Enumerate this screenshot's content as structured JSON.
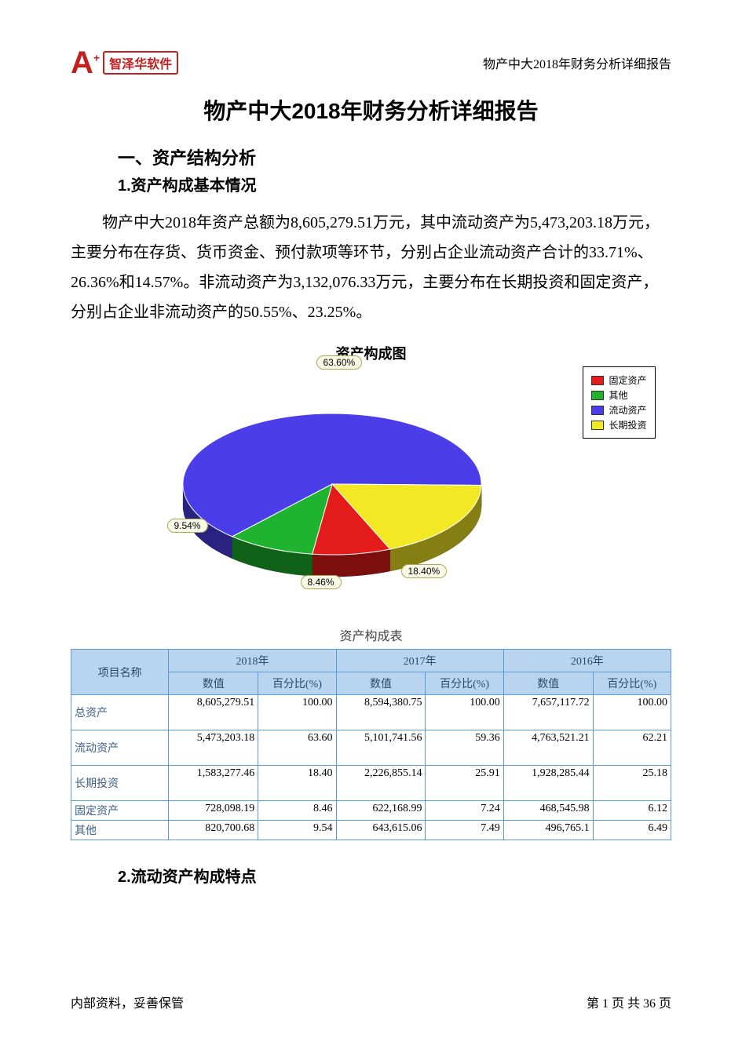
{
  "header": {
    "logo_text": "智泽华软件",
    "right_text": "物产中大2018年财务分析详细报告"
  },
  "title": "物产中大2018年财务分析详细报告",
  "section1": {
    "h1": "一、资产结构分析",
    "h2_1": "1.资产构成基本情况",
    "paragraph": "物产中大2018年资产总额为8,605,279.51万元，其中流动资产为5,473,203.18万元，主要分布在存货、货币资金、预付款项等环节，分别占企业流动资产合计的33.71%、26.36%和14.57%。非流动资产为3,132,076.33万元，主要分布在长期投资和固定资产，分别占企业非流动资产的50.55%、23.25%。",
    "h2_2": "2.流动资产构成特点"
  },
  "chart": {
    "type": "pie3d",
    "title": "资产构成图",
    "background_color": "#ffffff",
    "slices": [
      {
        "label": "流动资产",
        "value": 63.6,
        "color": "#4b3ee9",
        "label_text": "63.60%"
      },
      {
        "label": "长期投资",
        "value": 18.4,
        "color": "#f3e824",
        "label_text": "18.40%"
      },
      {
        "label": "固定资产",
        "value": 8.46,
        "color": "#e31b1b",
        "label_text": "8.46%"
      },
      {
        "label": "其他",
        "value": 9.54,
        "color": "#1fb32f",
        "label_text": "9.54%"
      }
    ],
    "legend": [
      {
        "label": "固定资产",
        "color": "#e31b1b"
      },
      {
        "label": "其他",
        "color": "#1fb32f"
      },
      {
        "label": "流动资产",
        "color": "#4b3ee9"
      },
      {
        "label": "长期投资",
        "color": "#f3e824"
      }
    ],
    "label_bg": "#f7f9e6",
    "label_border": "#aaaa55",
    "title_fontsize": 18
  },
  "table": {
    "caption": "资产构成表",
    "header_bg": "#b8d4ef",
    "border_color": "#5b9bd5",
    "col_rowheader": "项目名称",
    "years": [
      "2018年",
      "2017年",
      "2016年"
    ],
    "subcols": [
      "数值",
      "百分比(%)"
    ],
    "rows": [
      {
        "label": "总资产",
        "cells": [
          "8,605,279.51",
          "100.00",
          "8,594,380.75",
          "100.00",
          "7,657,117.72",
          "100.00"
        ]
      },
      {
        "label": "流动资产",
        "cells": [
          "5,473,203.18",
          "63.60",
          "5,101,741.56",
          "59.36",
          "4,763,521.21",
          "62.21"
        ]
      },
      {
        "label": "长期投资",
        "cells": [
          "1,583,277.46",
          "18.40",
          "2,226,855.14",
          "25.91",
          "1,928,285.44",
          "25.18"
        ]
      },
      {
        "label": "固定资产",
        "cells": [
          "728,098.19",
          "8.46",
          "622,168.99",
          "7.24",
          "468,545.98",
          "6.12"
        ]
      },
      {
        "label": "其他",
        "cells": [
          "820,700.68",
          "9.54",
          "643,615.06",
          "7.49",
          "496,765.1",
          "6.49"
        ]
      }
    ]
  },
  "footer": {
    "left": "内部资料，妥善保管",
    "right": "第 1 页  共 36 页"
  }
}
